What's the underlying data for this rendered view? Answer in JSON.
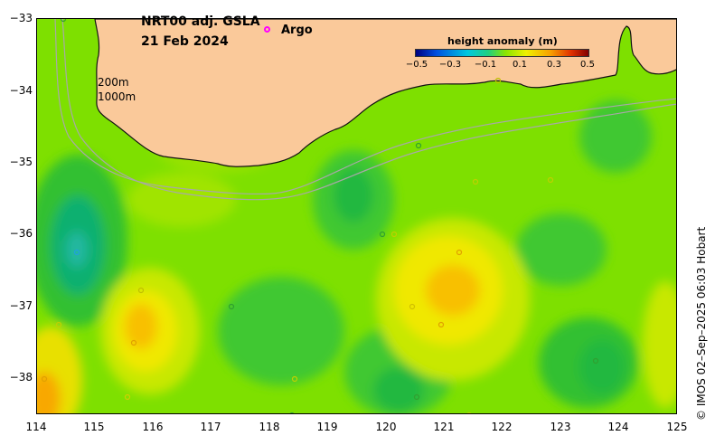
{
  "title": {
    "line1": "NRT00 adj. GSLA",
    "line2": "21 Feb 2024"
  },
  "legend": {
    "argo_label": "Argo",
    "argo_color": "#ff00ff"
  },
  "colorbar": {
    "title": "height anomaly (m)",
    "ticks": [
      "−0.5",
      "−0.3",
      "−0.1",
      "0.1",
      "0.3",
      "0.5"
    ]
  },
  "isobaths": {
    "label_200": "200m",
    "label_1000": "1000m"
  },
  "axes": {
    "y_ticks": [
      "−33",
      "−34",
      "−35",
      "−36",
      "−37",
      "−38"
    ],
    "x_ticks": [
      "114",
      "115",
      "116",
      "117",
      "118",
      "119",
      "120",
      "121",
      "122",
      "123",
      "124",
      "125"
    ]
  },
  "credit": "© IMOS 02–Sep–2025 06:03 Hobart",
  "colors": {
    "land": "#fac99a",
    "background_green": "#7ee000",
    "low_anomaly": "#10b840",
    "high_anomaly": "#f0e800",
    "isobath": "#a8a8a8"
  }
}
